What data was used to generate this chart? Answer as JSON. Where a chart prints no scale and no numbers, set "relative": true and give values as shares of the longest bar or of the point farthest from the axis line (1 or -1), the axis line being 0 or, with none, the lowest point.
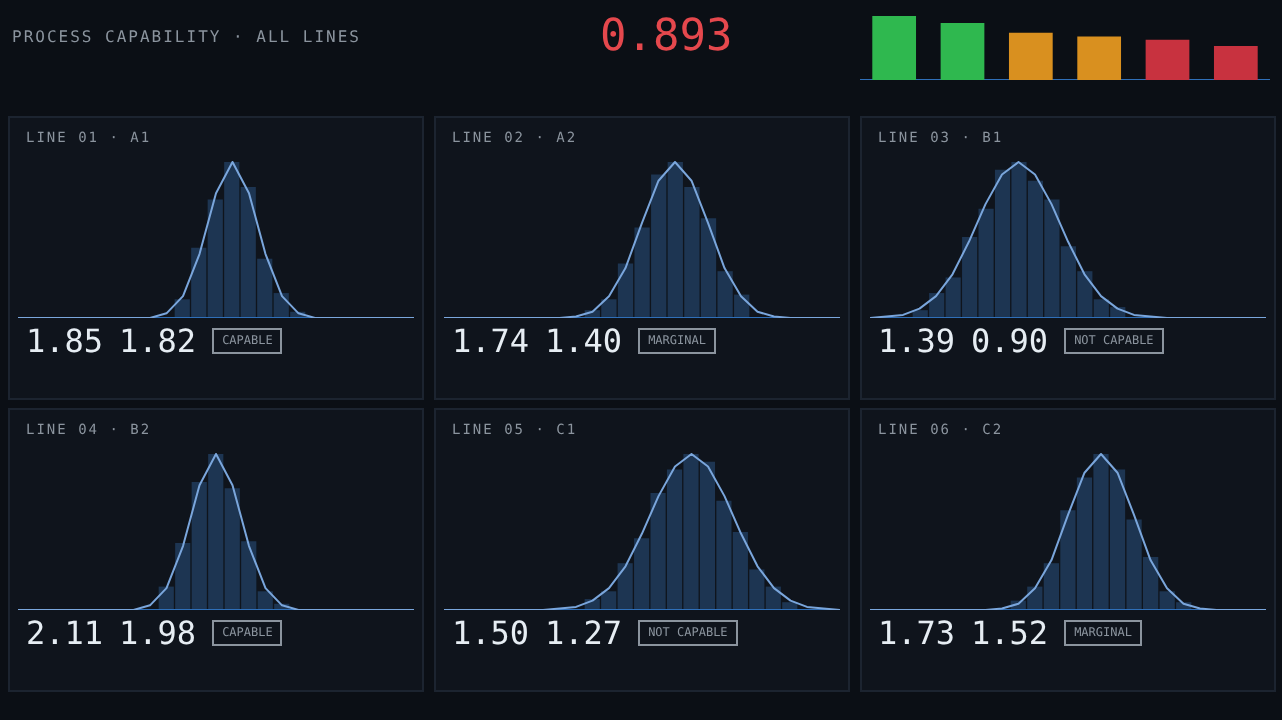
{
  "chart_data": [
    {
      "type": "other",
      "title": "PROCESS CAPABILITY · ALL LINES",
      "annotations": [
        "0.893"
      ]
    },
    {
      "type": "bar",
      "relative": true,
      "categories": [
        null,
        null,
        null,
        null,
        null,
        null
      ],
      "values": [
        1,
        0.89,
        0.74,
        0.68,
        0.63,
        0.53
      ],
      "colors": [
        "#2fb84f",
        "#2fb84f",
        "#d9901f",
        "#d9901f",
        "#c8323f",
        "#c8323f"
      ]
    },
    {
      "type": "line",
      "title": "LINE 01 · A1",
      "relative": true,
      "annotations": [
        "1.85",
        "1.82",
        "CAPABLE"
      ],
      "categories": [
        null,
        null,
        null,
        null,
        null,
        null,
        null,
        null,
        null,
        null,
        null,
        null,
        null,
        null,
        null,
        null,
        null,
        null,
        null,
        null,
        null,
        null,
        null,
        null,
        null
      ],
      "color": "#7aa6dc",
      "values": [
        0,
        0,
        0,
        0,
        0,
        0,
        0,
        0,
        0,
        0.03,
        0.14,
        0.41,
        0.8,
        1,
        0.8,
        0.41,
        0.14,
        0.03,
        0,
        0,
        0,
        0,
        0,
        0,
        0
      ]
    },
    {
      "type": "bar",
      "relative": true,
      "categories": [
        null,
        null,
        null,
        null,
        null,
        null,
        null,
        null
      ],
      "color": "#1d3552",
      "values": [
        0.12,
        0.45,
        0.76,
        1,
        0.84,
        0.38,
        0.16,
        0.04
      ]
    },
    {
      "type": "line",
      "title": "LINE 02 · A2",
      "relative": true,
      "annotations": [
        "1.74",
        "1.40",
        "MARGINAL"
      ],
      "categories": [
        null,
        null,
        null,
        null,
        null,
        null,
        null,
        null,
        null,
        null,
        null,
        null,
        null,
        null,
        null,
        null,
        null,
        null,
        null,
        null,
        null,
        null,
        null,
        null,
        null
      ],
      "color": "#7aa6dc",
      "values": [
        0,
        0,
        0,
        0,
        0,
        0,
        0,
        0,
        0.01,
        0.04,
        0.14,
        0.32,
        0.61,
        0.88,
        1,
        0.88,
        0.61,
        0.32,
        0.14,
        0.04,
        0.01,
        0,
        0,
        0,
        0
      ]
    },
    {
      "type": "bar",
      "relative": true,
      "categories": [
        null,
        null,
        null,
        null,
        null,
        null,
        null,
        null,
        null,
        null
      ],
      "color": "#1d3552",
      "values": [
        0.05,
        0.12,
        0.35,
        0.58,
        0.92,
        1,
        0.84,
        0.64,
        0.3,
        0.15
      ]
    },
    {
      "type": "line",
      "title": "LINE 03 · B1",
      "relative": true,
      "annotations": [
        "1.39",
        "0.90",
        "NOT CAPABLE"
      ],
      "categories": [
        null,
        null,
        null,
        null,
        null,
        null,
        null,
        null,
        null,
        null,
        null,
        null,
        null,
        null,
        null,
        null,
        null,
        null,
        null,
        null,
        null,
        null,
        null,
        null,
        null
      ],
      "color": "#7aa6dc",
      "values": [
        0,
        0.01,
        0.02,
        0.06,
        0.14,
        0.28,
        0.49,
        0.73,
        0.92,
        1,
        0.92,
        0.73,
        0.49,
        0.28,
        0.14,
        0.06,
        0.02,
        0.01,
        0,
        0,
        0,
        0,
        0,
        0,
        0
      ]
    },
    {
      "type": "bar",
      "relative": true,
      "categories": [
        null,
        null,
        null,
        null,
        null,
        null,
        null,
        null,
        null,
        null,
        null,
        null,
        null
      ],
      "color": "#1d3552",
      "values": [
        0.05,
        0.16,
        0.26,
        0.52,
        0.7,
        0.95,
        1,
        0.88,
        0.76,
        0.46,
        0.3,
        0.12,
        0.07
      ]
    },
    {
      "type": "line",
      "title": "LINE 04 · B2",
      "relative": true,
      "annotations": [
        "2.11",
        "1.98",
        "CAPABLE"
      ],
      "categories": [
        null,
        null,
        null,
        null,
        null,
        null,
        null,
        null,
        null,
        null,
        null,
        null,
        null,
        null,
        null,
        null,
        null,
        null,
        null,
        null,
        null,
        null,
        null,
        null,
        null
      ],
      "color": "#7aa6dc",
      "values": [
        0,
        0,
        0,
        0,
        0,
        0,
        0,
        0,
        0.03,
        0.14,
        0.41,
        0.8,
        1,
        0.8,
        0.41,
        0.14,
        0.03,
        0,
        0,
        0,
        0,
        0,
        0,
        0,
        0
      ]
    },
    {
      "type": "bar",
      "relative": true,
      "categories": [
        null,
        null,
        null,
        null,
        null,
        null,
        null,
        null
      ],
      "color": "#1d3552",
      "values": [
        0.15,
        0.43,
        0.82,
        1,
        0.78,
        0.44,
        0.12,
        0.04
      ]
    },
    {
      "type": "line",
      "title": "LINE 05 · C1",
      "relative": true,
      "annotations": [
        "1.50",
        "1.27",
        "NOT CAPABLE"
      ],
      "categories": [
        null,
        null,
        null,
        null,
        null,
        null,
        null,
        null,
        null,
        null,
        null,
        null,
        null,
        null,
        null,
        null,
        null,
        null,
        null,
        null,
        null,
        null,
        null,
        null,
        null
      ],
      "color": "#7aa6dc",
      "values": [
        0,
        0,
        0,
        0,
        0,
        0,
        0,
        0.01,
        0.02,
        0.06,
        0.14,
        0.28,
        0.49,
        0.73,
        0.92,
        1,
        0.92,
        0.73,
        0.49,
        0.28,
        0.14,
        0.06,
        0.02,
        0.01,
        0
      ]
    },
    {
      "type": "bar",
      "relative": true,
      "categories": [
        null,
        null,
        null,
        null,
        null,
        null,
        null,
        null,
        null,
        null,
        null,
        null,
        null
      ],
      "color": "#1d3552",
      "values": [
        0.07,
        0.12,
        0.3,
        0.46,
        0.75,
        0.9,
        1,
        0.95,
        0.7,
        0.5,
        0.26,
        0.15,
        0.05
      ]
    },
    {
      "type": "line",
      "title": "LINE 06 · C2",
      "relative": true,
      "annotations": [
        "1.73",
        "1.52",
        "MARGINAL"
      ],
      "categories": [
        null,
        null,
        null,
        null,
        null,
        null,
        null,
        null,
        null,
        null,
        null,
        null,
        null,
        null,
        null,
        null,
        null,
        null,
        null,
        null,
        null,
        null,
        null,
        null,
        null
      ],
      "color": "#7aa6dc",
      "values": [
        0,
        0,
        0,
        0,
        0,
        0,
        0,
        0,
        0.01,
        0.04,
        0.14,
        0.32,
        0.61,
        0.88,
        1,
        0.88,
        0.61,
        0.32,
        0.14,
        0.04,
        0.01,
        0,
        0,
        0,
        0
      ]
    },
    {
      "type": "bar",
      "relative": true,
      "categories": [
        null,
        null,
        null,
        null,
        null,
        null,
        null,
        null,
        null,
        null,
        null
      ],
      "color": "#1d3552",
      "values": [
        0.06,
        0.15,
        0.3,
        0.64,
        0.85,
        1,
        0.9,
        0.58,
        0.34,
        0.12,
        0.05
      ]
    }
  ]
}
